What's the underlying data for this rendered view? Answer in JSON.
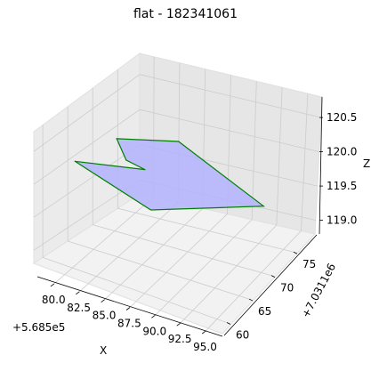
{
  "chart_data": {
    "type": "3d-polygon",
    "title": "flat - 182341061",
    "xlabel": "X",
    "ylabel": "",
    "zlabel": "Z",
    "x_offset_label": "+5.685e5",
    "y_offset_label": "+7.0311e6",
    "x_ticks": [
      "80.0",
      "82.5",
      "85.0",
      "87.5",
      "90.0",
      "92.5",
      "95.0"
    ],
    "y_ticks": [
      "60",
      "65",
      "70",
      "75"
    ],
    "z_ticks": [
      "119.0",
      "119.5",
      "120.0",
      "120.5"
    ],
    "grid": true,
    "polygon": {
      "face_color": "#b3b3ff",
      "edge_color": "#008000",
      "vertices": [
        {
          "x": 80.0,
          "y": 73.5,
          "z": 120.0
        },
        {
          "x": 84.0,
          "y": 77.5,
          "z": 120.0
        },
        {
          "x": 95.0,
          "y": 71.0,
          "z": 120.0
        },
        {
          "x": 88.5,
          "y": 62.0,
          "z": 120.0
        },
        {
          "x": 79.5,
          "y": 66.0,
          "z": 120.0
        },
        {
          "x": 84.5,
          "y": 69.5,
          "z": 120.0
        },
        {
          "x": 82.5,
          "y": 70.0,
          "z": 120.0
        }
      ]
    }
  }
}
